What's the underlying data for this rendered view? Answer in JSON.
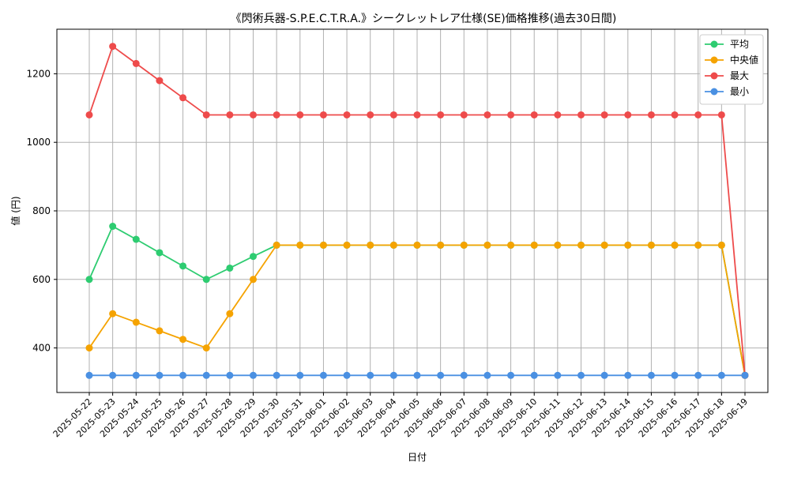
{
  "chart_data": {
    "type": "line",
    "title": "《閃術兵器-S.P.E.C.T.R.A.》シークレットレア仕様(SE)価格推移(過去30日間)",
    "xlabel": "日付",
    "ylabel": "値 (円)",
    "x": [
      "2025-05-22",
      "2025-05-23",
      "2025-05-24",
      "2025-05-25",
      "2025-05-26",
      "2025-05-27",
      "2025-05-28",
      "2025-05-29",
      "2025-05-30",
      "2025-05-31",
      "2025-06-01",
      "2025-06-02",
      "2025-06-03",
      "2025-06-04",
      "2025-06-05",
      "2025-06-06",
      "2025-06-07",
      "2025-06-08",
      "2025-06-09",
      "2025-06-10",
      "2025-06-11",
      "2025-06-12",
      "2025-06-13",
      "2025-06-14",
      "2025-06-15",
      "2025-06-16",
      "2025-06-17",
      "2025-06-18",
      "2025-06-19"
    ],
    "ylim": [
      270,
      1330
    ],
    "yticks": [
      400,
      600,
      800,
      1000,
      1200
    ],
    "grid": true,
    "legend_position": "top-right",
    "series": [
      {
        "name": "平均",
        "color": "#2ecc71",
        "values": [
          600,
          755,
          717,
          678,
          639,
          600,
          633,
          667,
          700,
          700,
          700,
          700,
          700,
          700,
          700,
          700,
          700,
          700,
          700,
          700,
          700,
          700,
          700,
          700,
          700,
          700,
          700,
          700,
          320
        ]
      },
      {
        "name": "中央値",
        "color": "#f5a300",
        "values": [
          400,
          500,
          475,
          450,
          425,
          400,
          500,
          600,
          700,
          700,
          700,
          700,
          700,
          700,
          700,
          700,
          700,
          700,
          700,
          700,
          700,
          700,
          700,
          700,
          700,
          700,
          700,
          700,
          320
        ]
      },
      {
        "name": "最大",
        "color": "#ee4b4b",
        "values": [
          1080,
          1280,
          1230,
          1180,
          1130,
          1080,
          1080,
          1080,
          1080,
          1080,
          1080,
          1080,
          1080,
          1080,
          1080,
          1080,
          1080,
          1080,
          1080,
          1080,
          1080,
          1080,
          1080,
          1080,
          1080,
          1080,
          1080,
          1080,
          320
        ]
      },
      {
        "name": "最小",
        "color": "#4a90e2",
        "values": [
          320,
          320,
          320,
          320,
          320,
          320,
          320,
          320,
          320,
          320,
          320,
          320,
          320,
          320,
          320,
          320,
          320,
          320,
          320,
          320,
          320,
          320,
          320,
          320,
          320,
          320,
          320,
          320,
          320
        ]
      }
    ]
  }
}
